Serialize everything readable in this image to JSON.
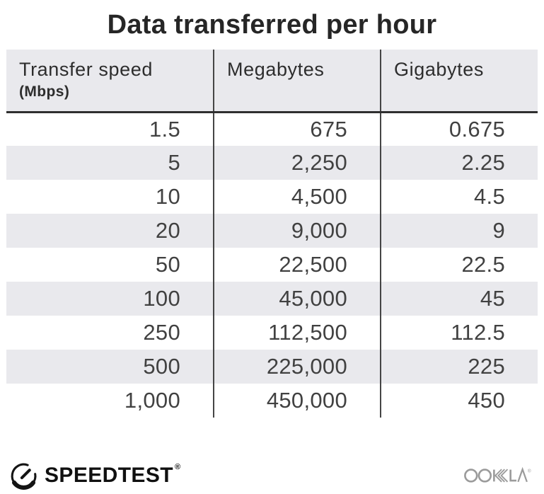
{
  "title": "Data transferred per hour",
  "table": {
    "header": {
      "col1_line1": "Transfer speed",
      "col1_line2": "(Mbps)",
      "col2": "Megabytes",
      "col3": "Gigabytes"
    },
    "rows": [
      [
        "1.5",
        "675",
        "0.675"
      ],
      [
        "5",
        "2,250",
        "2.25"
      ],
      [
        "10",
        "4,500",
        "4.5"
      ],
      [
        "20",
        "9,000",
        "9"
      ],
      [
        "50",
        "22,500",
        "22.5"
      ],
      [
        "100",
        "45,000",
        "45"
      ],
      [
        "250",
        "112,500",
        "112.5"
      ],
      [
        "500",
        "225,000",
        "225"
      ],
      [
        "1,000",
        "450,000",
        "450"
      ]
    ]
  },
  "footer": {
    "brand": "SPEEDTEST",
    "brand_trademark": "®",
    "attribution": "OOKLA",
    "attribution_trademark": "®"
  },
  "colors": {
    "stripe_gray": "#e9e9ed",
    "column_divider": "#454545",
    "header_rule": "#2f2f2f",
    "title_text": "#262626",
    "body_text": "#414141",
    "brand_black": "#101010",
    "ookla_gray": "#9b9b9b"
  },
  "chart_data": {
    "type": "table",
    "title": "Data transferred per hour",
    "columns": [
      "Transfer speed (Mbps)",
      "Megabytes",
      "Gigabytes"
    ],
    "rows": [
      [
        1.5,
        675,
        0.675
      ],
      [
        5,
        2250,
        2.25
      ],
      [
        10,
        4500,
        4.5
      ],
      [
        20,
        9000,
        9
      ],
      [
        50,
        22500,
        22.5
      ],
      [
        100,
        45000,
        45
      ],
      [
        250,
        112500,
        112.5
      ],
      [
        500,
        225000,
        225
      ],
      [
        1000,
        450000,
        450
      ]
    ],
    "layout": {
      "striped_rows": true,
      "stripe_start": "second_data_row",
      "column_alignment": [
        "right",
        "right",
        "right"
      ]
    }
  }
}
